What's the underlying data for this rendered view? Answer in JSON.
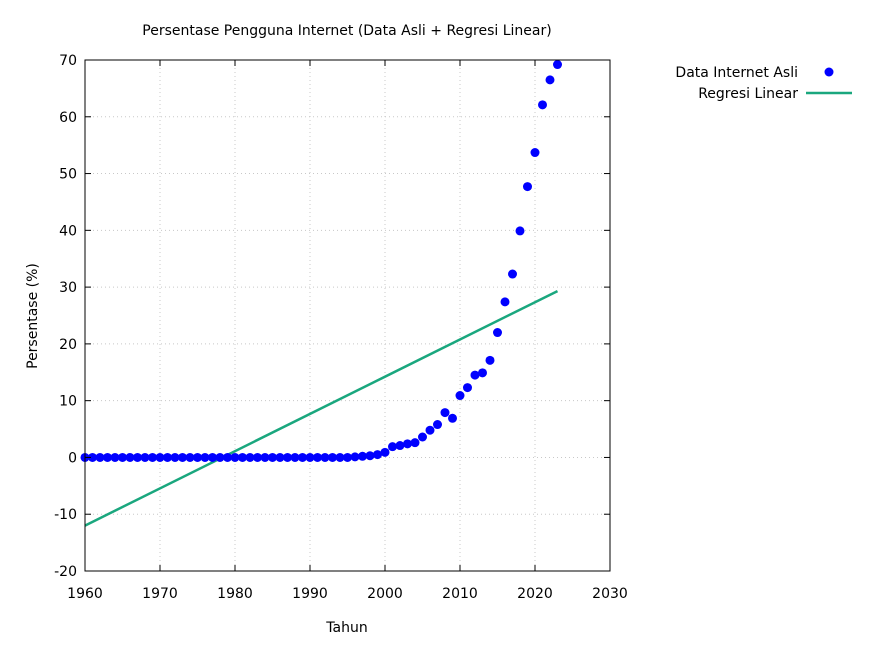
{
  "chart_data": {
    "type": "scatter",
    "title": "Persentase Pengguna Internet (Data Asli + Regresi Linear)",
    "xlabel": "Tahun",
    "ylabel": "Persentase (%)",
    "xlim": [
      1960,
      2030
    ],
    "ylim": [
      -20,
      70
    ],
    "xticks": [
      "1960",
      "1970",
      "1980",
      "1990",
      "2000",
      "2010",
      "2020",
      "2030"
    ],
    "yticks": [
      "-20",
      "-10",
      "0",
      "10",
      "20",
      "30",
      "40",
      "50",
      "60",
      "70"
    ],
    "grid": true,
    "legend_position": "outside-top-right",
    "colors": {
      "scatter": "#0000ff",
      "line": "#1aa77e"
    },
    "series": [
      {
        "name": "Data Internet Asli",
        "kind": "scatter",
        "x": [
          1960,
          1961,
          1962,
          1963,
          1964,
          1965,
          1966,
          1967,
          1968,
          1969,
          1970,
          1971,
          1972,
          1973,
          1974,
          1975,
          1976,
          1977,
          1978,
          1979,
          1980,
          1981,
          1982,
          1983,
          1984,
          1985,
          1986,
          1987,
          1988,
          1989,
          1990,
          1991,
          1992,
          1993,
          1994,
          1995,
          1996,
          1997,
          1998,
          1999,
          2000,
          2001,
          2002,
          2003,
          2004,
          2005,
          2006,
          2007,
          2008,
          2009,
          2010,
          2011,
          2012,
          2013,
          2014,
          2015,
          2016,
          2017,
          2018,
          2019,
          2020,
          2021,
          2022,
          2023
        ],
        "y": [
          0,
          0,
          0,
          0,
          0,
          0,
          0,
          0,
          0,
          0,
          0,
          0,
          0,
          0,
          0,
          0,
          0,
          0,
          0,
          0,
          0,
          0,
          0,
          0,
          0,
          0,
          0,
          0,
          0,
          0,
          0,
          0,
          0,
          0,
          0,
          0,
          0.1,
          0.2,
          0.3,
          0.5,
          0.9,
          1.9,
          2.1,
          2.4,
          2.6,
          3.6,
          4.8,
          5.8,
          7.9,
          6.9,
          10.9,
          12.3,
          14.5,
          14.9,
          17.1,
          22.0,
          27.4,
          32.3,
          39.9,
          47.7,
          53.7,
          62.1,
          66.5,
          69.2
        ]
      },
      {
        "name": "Regresi Linear",
        "kind": "line",
        "x": [
          1960,
          2023
        ],
        "y": [
          -12.0,
          29.3
        ]
      }
    ]
  }
}
